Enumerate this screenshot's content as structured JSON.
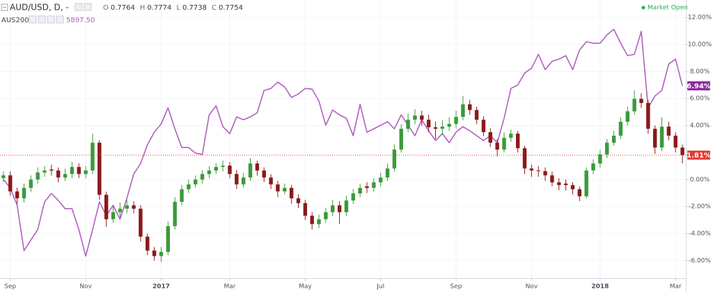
{
  "chart_data": {
    "type": "candlestick",
    "categories": [
      null,
      "Sep",
      null,
      null,
      null,
      null,
      null,
      null,
      null,
      null,
      null,
      null,
      "Nov",
      null,
      null,
      null,
      null,
      null,
      null,
      null,
      null,
      null,
      null,
      "2017",
      null,
      null,
      null,
      null,
      null,
      null,
      null,
      null,
      null,
      "Mar",
      null,
      null,
      null,
      null,
      null,
      null,
      null,
      null,
      null,
      null,
      "May",
      null,
      null,
      null,
      null,
      null,
      null,
      null,
      null,
      null,
      null,
      "Jul",
      null,
      null,
      null,
      null,
      null,
      null,
      null,
      null,
      null,
      null,
      "Sep",
      null,
      null,
      null,
      null,
      null,
      null,
      null,
      null,
      null,
      null,
      "Nov",
      null,
      null,
      null,
      null,
      null,
      null,
      null,
      null,
      null,
      "2018",
      null,
      null,
      null,
      null,
      null,
      null,
      null,
      null,
      null,
      null,
      "Mar",
      null
    ],
    "ylim": [
      -7.3,
      13.3
    ],
    "yticks": [
      {
        "value": -6,
        "label": "-6.00%"
      },
      {
        "value": -4,
        "label": "-4.00%"
      },
      {
        "value": -2,
        "label": "-2.00%"
      },
      {
        "value": 0,
        "label": "0.00%"
      },
      {
        "value": 4,
        "label": "4.00%"
      },
      {
        "value": 6,
        "label": "6.00%"
      },
      {
        "value": 8,
        "label": "8.00%"
      },
      {
        "value": 10,
        "label": "10.00%"
      },
      {
        "value": 12,
        "label": "12.00%"
      }
    ],
    "grid": true,
    "status": "Market Open",
    "series": [
      {
        "name": "AUD/USD, D, -",
        "type": "candlestick",
        "color_up": "#3a9a3a",
        "color_down": "#8b1a1a",
        "last_line_color": "#e53935",
        "ohlc_labels": [
          "O",
          "H",
          "L",
          "C"
        ],
        "ohlc_values": [
          0.7764,
          0.7774,
          0.7738,
          0.7754
        ],
        "last_value_label": "1.81%",
        "open": [
          0.1,
          0.31,
          -0.88,
          -1.39,
          -0.62,
          0,
          0.52,
          0.75,
          0.67,
          0.15,
          0.41,
          0.93,
          0.41,
          0.67,
          2.73,
          -1.13,
          -2.94,
          -2.42,
          -2.16,
          -1.91,
          -2.16,
          -4.23,
          -5.26,
          -5.67,
          -5.36,
          -3.45,
          -1.65,
          -0.72,
          -0.36,
          0,
          0.41,
          0.67,
          0.93,
          1.03,
          0.41,
          -0.36,
          0.15,
          1.19,
          0.67,
          0.15,
          -0.36,
          -0.88,
          -0.62,
          -1.39,
          -1.75,
          -2.68,
          -3.3,
          -2.94,
          -2.42,
          -1.91,
          -2.42,
          -1.55,
          -1.03,
          -0.5,
          -0.62,
          -0.21,
          0.15,
          0.82,
          2.22,
          3.76,
          4.43,
          4.74,
          4.43,
          3.87,
          3.76,
          3.92,
          4.12,
          4.64,
          5.57,
          5.15,
          4.43,
          3.51,
          2.73,
          2.22,
          3.09,
          3.4,
          2.32,
          0.82,
          0.67,
          0.62,
          0.31,
          -0.21,
          -0.3,
          -0.41,
          -0.72,
          -1.24,
          0.67,
          1.19,
          1.86,
          2.73,
          3.25,
          4.28,
          5.05,
          5.98,
          5.67,
          3.76,
          2.37,
          3.92,
          3.25,
          2.37
        ],
        "high": [
          0.6,
          0.6,
          -0.6,
          -0.3,
          0.3,
          0.9,
          1.0,
          1.1,
          0.9,
          0.8,
          1.3,
          1.2,
          1.0,
          3.4,
          2.9,
          -0.9,
          -1.9,
          -1.7,
          -1.5,
          -1.6,
          -1.9,
          -4.0,
          -5.0,
          -5.0,
          -3.1,
          -1.3,
          -0.4,
          0,
          0.3,
          0.7,
          1.0,
          1.2,
          1.4,
          1.3,
          0.7,
          0.5,
          1.6,
          1.4,
          0.9,
          0.4,
          -0.1,
          -0.3,
          -0.4,
          -1.1,
          -1.5,
          -2.4,
          -2.6,
          -2.1,
          -1.5,
          -1.6,
          -1.2,
          -0.7,
          -0.3,
          -0.2,
          0.1,
          0.5,
          1.2,
          2.6,
          4.1,
          4.9,
          5.2,
          5.1,
          4.8,
          4.3,
          4.4,
          4.6,
          5.1,
          6.2,
          5.9,
          5.4,
          4.7,
          3.8,
          3.0,
          3.5,
          3.7,
          3.6,
          2.5,
          1.1,
          1.0,
          0.9,
          0.6,
          0.1,
          0,
          -0.2,
          -0.5,
          0.9,
          1.5,
          2.2,
          3.0,
          3.6,
          4.6,
          5.4,
          6.6,
          6.4,
          5.9,
          4.0,
          4.6,
          4.3,
          3.5,
          2.6
        ],
        "low": [
          -0.2,
          -1.2,
          -1.8,
          -1.7,
          -0.9,
          -0.3,
          0.2,
          0.3,
          -0.2,
          -0.1,
          0.1,
          0.1,
          0.1,
          0.4,
          -1.5,
          -3.5,
          -3.2,
          -2.8,
          -2.5,
          -2.5,
          -4.6,
          -5.6,
          -6.0,
          -6.1,
          -5.6,
          -3.7,
          -1.9,
          -1.0,
          -0.6,
          -0.3,
          0.1,
          0.4,
          0.6,
          0.1,
          -0.7,
          -0.6,
          -0.1,
          0.3,
          -0.2,
          -0.7,
          -1.3,
          -1.1,
          -1.8,
          -2.1,
          -3.0,
          -3.7,
          -3.6,
          -3.2,
          -2.7,
          -3.3,
          -2.7,
          -1.8,
          -1.3,
          -1.0,
          -0.9,
          -0.5,
          -0.1,
          0.6,
          2.0,
          3.5,
          4.1,
          4.0,
          3.5,
          3.0,
          3.3,
          3.6,
          3.8,
          4.4,
          4.8,
          4.1,
          3.2,
          2.4,
          1.7,
          2.0,
          2.8,
          2.0,
          0.4,
          0.2,
          0.2,
          -0.1,
          -0.5,
          -0.8,
          -0.8,
          -1.1,
          -1.6,
          -1.4,
          0.4,
          0.9,
          1.6,
          2.5,
          3.0,
          4.0,
          4.8,
          5.3,
          3.4,
          1.9,
          2.1,
          2.9,
          2.0,
          1.2
        ],
        "close": [
          0.31,
          -0.88,
          -1.39,
          -0.62,
          0,
          0.52,
          0.67,
          0.67,
          0.15,
          0.41,
          0.93,
          0.41,
          0.67,
          2.73,
          -1.13,
          -2.94,
          -2.42,
          -2.16,
          -1.91,
          -2.16,
          -4.23,
          -5.26,
          -5.67,
          -5.36,
          -3.45,
          -1.65,
          -0.72,
          -0.36,
          0,
          0.41,
          0.67,
          0.93,
          1.03,
          0.41,
          -0.36,
          0.15,
          1.19,
          0.67,
          0.15,
          -0.36,
          -0.88,
          -0.62,
          -1.39,
          -1.75,
          -2.68,
          -3.3,
          -2.94,
          -2.42,
          -1.91,
          -2.42,
          -1.55,
          -1.03,
          -0.62,
          -0.62,
          -0.21,
          0.15,
          0.82,
          2.22,
          3.76,
          4.43,
          4.74,
          4.43,
          3.87,
          3.76,
          3.92,
          4.12,
          4.64,
          5.57,
          5.15,
          4.43,
          3.51,
          2.73,
          2.22,
          3.09,
          3.4,
          2.32,
          0.82,
          0.67,
          0.62,
          0.31,
          -0.21,
          -0.41,
          -0.41,
          -0.72,
          -1.24,
          0.67,
          1.19,
          1.86,
          2.73,
          3.25,
          4.28,
          5.05,
          5.98,
          5.67,
          3.76,
          2.37,
          3.92,
          3.25,
          2.37,
          1.81
        ]
      },
      {
        "name": "AUS200,",
        "type": "line",
        "color": "#b25fc0",
        "tag_color": "#8e2c9e",
        "last_price": {
          "value": 5897.5,
          "label": "5897.50"
        },
        "last_value_label": "6.94%",
        "values": [
          0,
          -0.62,
          -1.91,
          -5.26,
          -4.48,
          -3.71,
          -1.65,
          -1.03,
          -1.55,
          -2.16,
          -2.16,
          -3.71,
          -5.67,
          -3.71,
          -1.65,
          -2.68,
          -1.91,
          -2.94,
          -1.39,
          0.41,
          1.19,
          2.58,
          3.51,
          4.12,
          5.31,
          3.76,
          2.37,
          2.37,
          1.96,
          1.86,
          4.79,
          5.46,
          3.92,
          3.4,
          4.64,
          4.43,
          4.64,
          4.95,
          6.6,
          6.75,
          7.22,
          6.86,
          6.08,
          6.34,
          6.75,
          6.7,
          5.82,
          4.02,
          5.15,
          4.79,
          4.54,
          3.25,
          5.57,
          3.51,
          3.76,
          4.02,
          4.28,
          3.76,
          4.79,
          4.02,
          3.25,
          4.43,
          3.61,
          2.89,
          3.4,
          2.73,
          3.51,
          3.92,
          3.61,
          3.25,
          2.89,
          3.25,
          2.73,
          4.54,
          6.75,
          7.01,
          7.89,
          8.25,
          9.28,
          8.14,
          8.76,
          8.92,
          9.18,
          8.14,
          9.59,
          10.21,
          10.1,
          10.1,
          10.72,
          11.13,
          10.1,
          9.18,
          9.28,
          10.98,
          5.31,
          6.19,
          6.6,
          8.56,
          8.92,
          6.94
        ]
      }
    ]
  }
}
